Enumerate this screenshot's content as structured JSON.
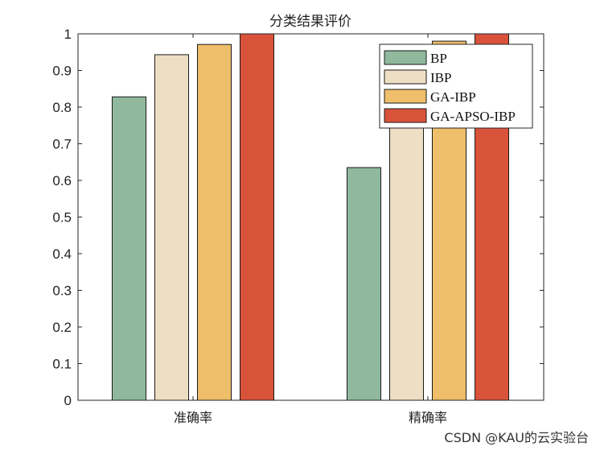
{
  "chart_data": {
    "type": "bar",
    "title": "分类结果评价",
    "categories": [
      "准确率",
      "精确率"
    ],
    "series": [
      {
        "name": "BP",
        "values": [
          0.828,
          0.635
        ],
        "color": "#8fb89d"
      },
      {
        "name": "IBP",
        "values": [
          0.943,
          0.795
        ],
        "color": "#eedfc4"
      },
      {
        "name": "GA-IBP",
        "values": [
          0.971,
          0.98
        ],
        "color": "#efbe6a"
      },
      {
        "name": "GA-APSO-IBP",
        "values": [
          1.0,
          1.0
        ],
        "color": "#d9523a"
      }
    ],
    "ylim": [
      0,
      1
    ],
    "yticks": [
      "0",
      "0.1",
      "0.2",
      "0.3",
      "0.4",
      "0.5",
      "0.6",
      "0.7",
      "0.8",
      "0.9",
      "1"
    ],
    "xlabel": "",
    "ylabel": "",
    "legend_position": "top-right",
    "grid": false
  },
  "watermark": "CSDN @KAU的云实验台"
}
